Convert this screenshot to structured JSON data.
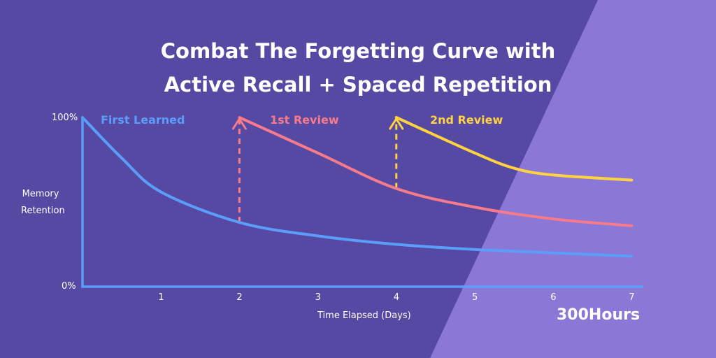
{
  "colors": {
    "background_dark": "#5549A3",
    "background_light": "#8A77D6",
    "first_learned": "#5B9DF9",
    "first_review": "#F77B8A",
    "second_review": "#FFD340",
    "text": "#FFFFFF"
  },
  "brand": "300Hours",
  "chart_data": {
    "type": "line",
    "title": [
      "Combat The Forgetting Curve with",
      "Active Recall + Spaced Repetition"
    ],
    "xlabel": "Time Elapsed (Days)",
    "ylabel": [
      "Memory",
      "Retention"
    ],
    "xlim": [
      0,
      7
    ],
    "ylim": [
      0,
      100
    ],
    "xticks": [
      "1",
      "2",
      "3",
      "4",
      "5",
      "6",
      "7"
    ],
    "yticks": [
      "0%",
      "100%"
    ],
    "grid": false,
    "series": [
      {
        "name": "First Learned",
        "x": [
          0,
          0.5,
          1,
          2,
          3,
          4,
          5,
          6,
          7
        ],
        "y": [
          100,
          76,
          56,
          38,
          30,
          25,
          22,
          20,
          18
        ]
      },
      {
        "name": "1st Review",
        "x": [
          2,
          3,
          4,
          5,
          6,
          7
        ],
        "y": [
          100,
          79,
          58,
          47,
          40,
          36
        ]
      },
      {
        "name": "2nd Review",
        "x": [
          4,
          5,
          5.5,
          6,
          7
        ],
        "y": [
          100,
          79,
          70,
          66,
          63
        ]
      }
    ],
    "review_arrows": [
      {
        "x": 2,
        "from": 38,
        "to": 100
      },
      {
        "x": 4,
        "from": 58,
        "to": 100
      }
    ]
  }
}
